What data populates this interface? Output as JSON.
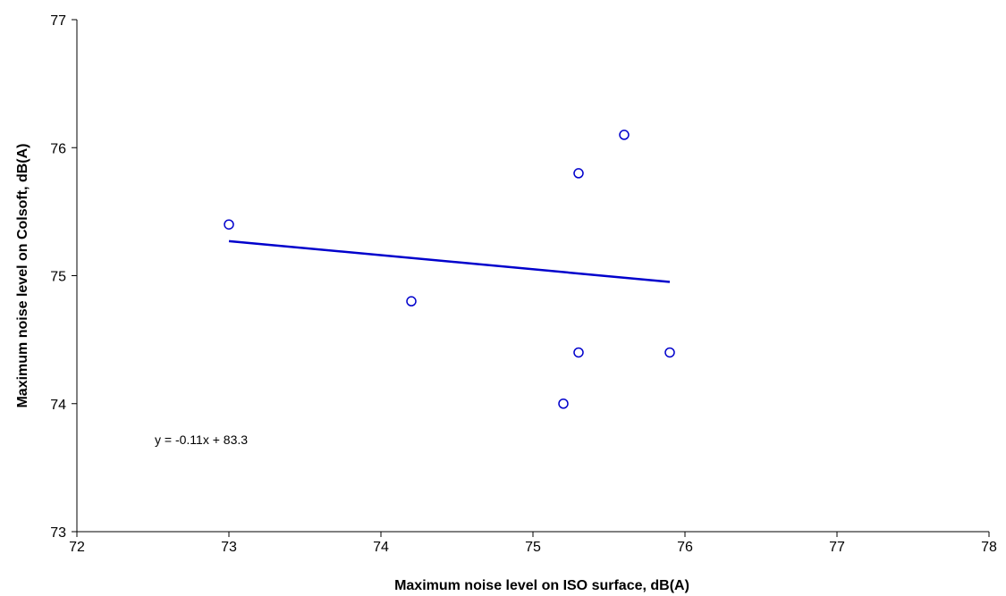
{
  "chart_data": {
    "type": "scatter",
    "xlabel": "Maximum noise level on ISO surface, dB(A)",
    "ylabel": "Maximum noise level on Colsoft, dB(A)",
    "xlim": [
      72,
      78
    ],
    "ylim": [
      73,
      77
    ],
    "x_ticks": [
      "72",
      "73",
      "74",
      "75",
      "76",
      "77",
      "78"
    ],
    "y_ticks": [
      "73",
      "74",
      "75",
      "76",
      "77"
    ],
    "grid": false,
    "series": [
      {
        "marker": "open-circle",
        "color": "#0000cc",
        "points": [
          {
            "x": 73.0,
            "y": 75.4
          },
          {
            "x": 74.2,
            "y": 74.8
          },
          {
            "x": 75.2,
            "y": 74.0
          },
          {
            "x": 75.3,
            "y": 75.8
          },
          {
            "x": 75.3,
            "y": 74.4
          },
          {
            "x": 75.6,
            "y": 76.1
          },
          {
            "x": 75.9,
            "y": 74.4
          }
        ]
      }
    ],
    "trendline": {
      "type": "linear",
      "color": "#0000cc",
      "slope": -0.11,
      "intercept": 83.3,
      "x_range": [
        73.0,
        75.9
      ],
      "equation_label": "y = -0.11x + 83.3"
    }
  }
}
